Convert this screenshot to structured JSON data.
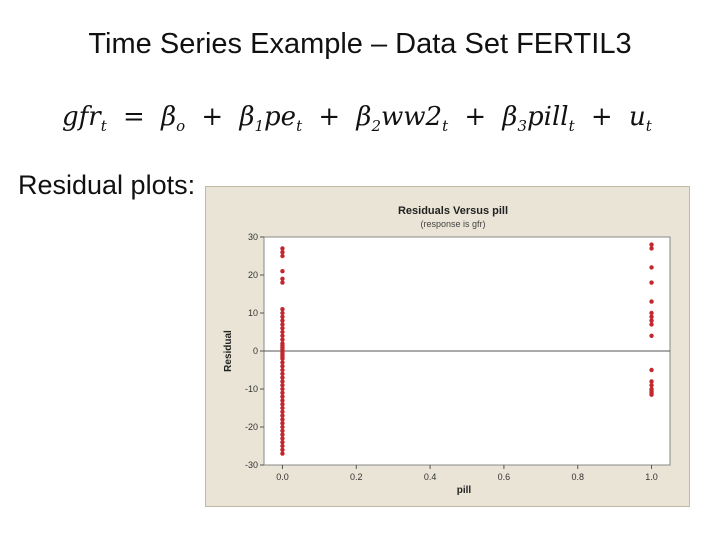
{
  "slide": {
    "title": "Time Series Example – Data Set FERTIL3",
    "equation": {
      "lhs": "gfr",
      "lhs_sub": "t",
      "equals": "=",
      "b0": "β",
      "b0_sub": "o",
      "plus1": "+",
      "b1": "β",
      "b1_sub": "1",
      "x1": "pe",
      "x1_sub": "t",
      "plus2": "+",
      "b2": "β",
      "b2_sub": "2",
      "x2": "ww2",
      "x2_sub": "t",
      "plus3": "+",
      "b3": "β",
      "b3_sub": "3",
      "x3": "pill",
      "x3_sub": "t",
      "plus4": "+",
      "u": "u",
      "u_sub": "t"
    },
    "residual_label": "Residual plots:"
  },
  "chart_data": {
    "type": "scatter",
    "title": "Residuals Versus pill",
    "subtitle": "(response is gfr)",
    "xlabel": "pill",
    "ylabel": "Residual",
    "xlim": [
      -0.05,
      1.05
    ],
    "ylim": [
      -30,
      30
    ],
    "xticks": [
      "0.0",
      "0.2",
      "0.4",
      "0.6",
      "0.8",
      "1.0"
    ],
    "xtick_values": [
      0.0,
      0.2,
      0.4,
      0.6,
      0.8,
      1.0
    ],
    "yticks": [
      "30",
      "20",
      "10",
      "0",
      "-10",
      "-20",
      "-30"
    ],
    "ytick_values": [
      30,
      20,
      10,
      0,
      -10,
      -20,
      -30
    ],
    "reference_line_y": 0,
    "point_color": "#c0282d",
    "background_color": "#e9e4d6",
    "plot_area_color": "#ffffff",
    "series": [
      {
        "x": [
          0,
          0,
          0,
          0,
          0,
          0,
          0,
          0,
          0,
          0,
          0,
          0,
          0,
          0,
          0,
          0,
          0,
          0,
          0,
          0,
          0,
          0,
          0,
          0,
          0,
          0,
          0,
          0,
          0,
          0,
          0,
          0,
          0,
          0,
          0,
          0,
          0,
          0,
          0,
          0,
          0,
          0,
          0,
          0,
          0,
          0,
          0,
          0,
          0
        ],
        "y": [
          27,
          26,
          25,
          21,
          19,
          18,
          11,
          10,
          9,
          8,
          7,
          6,
          5,
          2,
          1,
          0.5,
          0,
          -0.5,
          -1,
          -2,
          -3,
          -4,
          -5,
          -6,
          -7,
          -9,
          -10,
          -11,
          -12,
          -13,
          -14,
          -15,
          -17,
          -19,
          -20,
          -21,
          -22,
          -23,
          -24,
          -25,
          -26,
          -27,
          3,
          4,
          -8,
          -16,
          -18,
          -1.5,
          1.5
        ]
      },
      {
        "x": [
          1,
          1,
          1,
          1,
          1,
          1,
          1,
          1,
          1,
          1,
          1,
          1,
          1,
          1,
          1,
          1,
          1
        ],
        "y": [
          28,
          27,
          22,
          18,
          13,
          10,
          9,
          8,
          7,
          4,
          -5,
          -8,
          -9,
          -10,
          -10.5,
          -11,
          -11.5
        ]
      }
    ]
  }
}
